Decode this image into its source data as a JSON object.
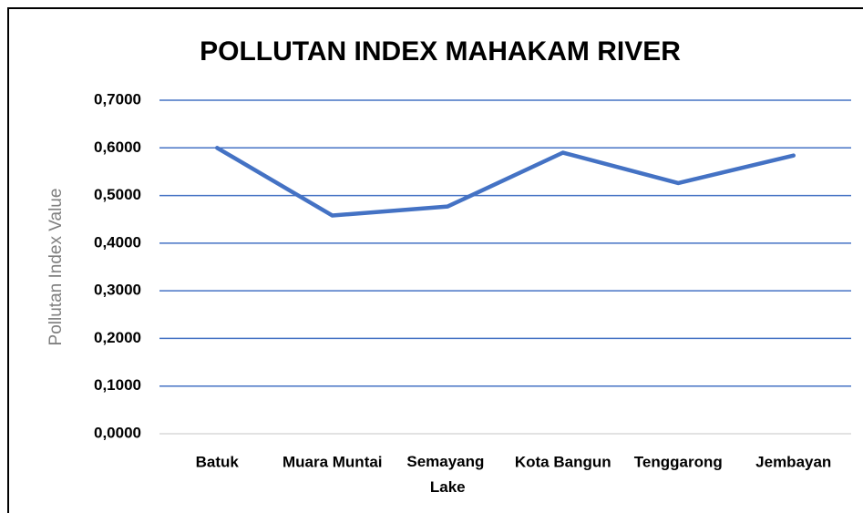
{
  "chart_data": {
    "type": "line",
    "title": "POLLUTAN INDEX MAHAKAM RIVER",
    "y_label": "Pollutan Index Value",
    "categories": [
      "Batuk",
      "Muara Muntai",
      "Semayang Lake",
      "Kota Bangun",
      "Tenggarong",
      "Jembayan"
    ],
    "series": [
      {
        "name": "Pollutan Index Value",
        "color": "#4472c4",
        "values": [
          0.6,
          0.458,
          0.477,
          0.59,
          0.526,
          0.584
        ]
      }
    ],
    "ylim": [
      0,
      0.7
    ],
    "yticks": [
      {
        "value": 0,
        "label": "0,0000"
      },
      {
        "value": 0.1,
        "label": "0,1000"
      },
      {
        "value": 0.2,
        "label": "0,2000"
      },
      {
        "value": 0.3,
        "label": "0,3000"
      },
      {
        "value": 0.4,
        "label": "0,4000"
      },
      {
        "value": 0.5,
        "label": "0,5000"
      },
      {
        "value": 0.6,
        "label": "0,6000"
      },
      {
        "value": 0.7,
        "label": "0,7000"
      }
    ],
    "grid": true
  }
}
